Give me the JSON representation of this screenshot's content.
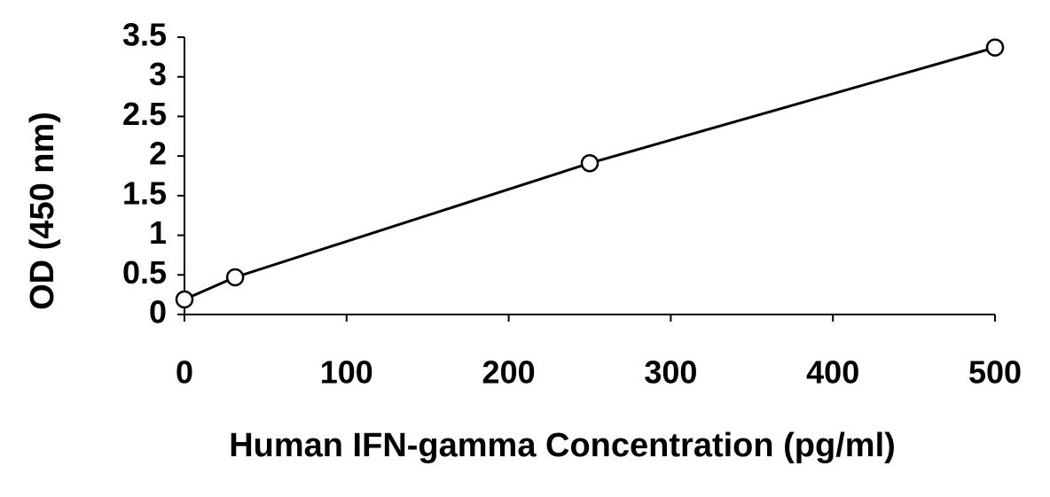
{
  "chart_data": {
    "type": "scatter",
    "x_label": "Human IFN-gamma Concentration (pg/ml)",
    "y_label": "OD (450 nm)",
    "series": [
      {
        "x": [
          0,
          31.25,
          250,
          500
        ],
        "values": [
          0.19,
          0.47,
          1.91,
          3.37
        ],
        "color": "#000000"
      }
    ],
    "xlim": [
      0,
      500
    ],
    "xticks": [
      0,
      100,
      200,
      300,
      400,
      500
    ],
    "ylim": [
      0,
      3.5
    ],
    "yticks": [
      0,
      0.5,
      1,
      1.5,
      2,
      2.5,
      3,
      3.5
    ],
    "grid": false
  }
}
